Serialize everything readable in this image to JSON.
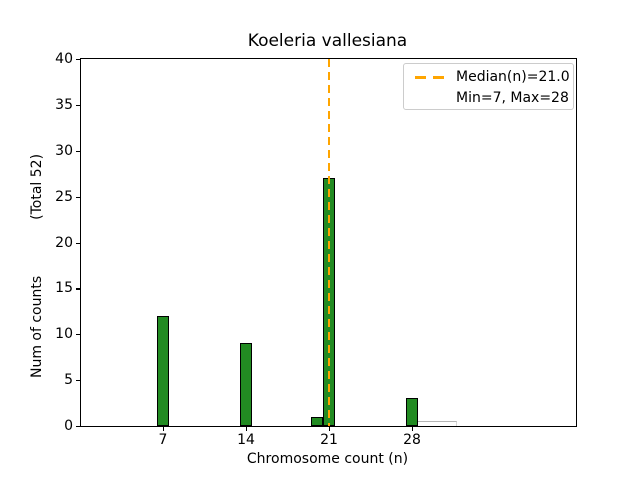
{
  "figure": {
    "title": "Koeleria vallesiana",
    "xlabel": "Chromosome count (n)",
    "ylabel_main": "Num of counts",
    "ylabel_total": "(Total 52)",
    "background_color": "#ffffff"
  },
  "legend": {
    "line1": "Median(n)=21.0",
    "line2": "Min=7, Max=28",
    "sample_color": "#FFA500",
    "sample_style": "dashed"
  },
  "chart_data": {
    "type": "bar",
    "title": "Koeleria vallesiana",
    "xlabel": "Chromosome count (n)",
    "ylabel": "Num of counts    (Total 52)",
    "categories": [
      7,
      14,
      20,
      21,
      28
    ],
    "values": [
      12,
      9,
      1,
      27,
      3
    ],
    "total_counts": 52,
    "median": 21.0,
    "min": 7,
    "max": 28,
    "median_line_x": 21,
    "xticks": [
      "7",
      "14",
      "21",
      "28"
    ],
    "xtick_values": [
      7,
      14,
      21,
      28
    ],
    "yticks": [
      "0",
      "5",
      "10",
      "15",
      "20",
      "25",
      "30",
      "35",
      "40"
    ],
    "ytick_values": [
      0,
      5,
      10,
      15,
      20,
      25,
      30,
      35,
      40
    ],
    "ylim": [
      0,
      40
    ],
    "bar_width_units": 1,
    "bar_color": "#228B22",
    "bar_edge_color": "#000000",
    "median_line_color": "#FFA500",
    "legend_position": "upper right",
    "grid": false
  }
}
